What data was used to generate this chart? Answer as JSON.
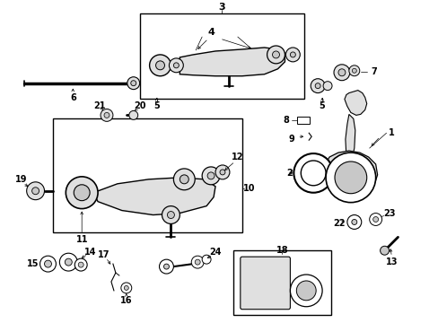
{
  "background_color": "#ffffff",
  "line_color": "#000000",
  "fig_width": 4.89,
  "fig_height": 3.6,
  "dpi": 100,
  "gray1": "#c8c8c8",
  "gray2": "#e0e0e0",
  "gray3": "#a0a0a0"
}
